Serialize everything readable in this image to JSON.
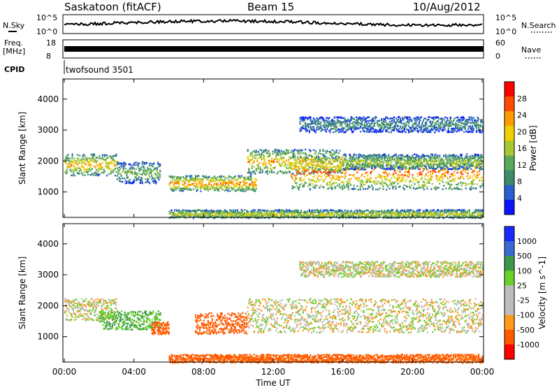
{
  "header": {
    "title": "Saskatoon (fitACF)",
    "beam": "Beam 15",
    "date": "10/Aug/2012"
  },
  "top_panels": {
    "nsky": {
      "label": "N.Sky",
      "tick_top": "10^5",
      "tick_bottom": "10^0"
    },
    "nsearch": {
      "label": "N.Search",
      "tick_top": "10^5",
      "tick_bottom": "10^0"
    },
    "freq": {
      "label_line1": "Freq.",
      "label_line2": "[MHz]",
      "tick_top": "18",
      "tick_bottom": "8"
    },
    "nave": {
      "label": "Nave",
      "tick_top": "60",
      "tick_bottom": "0"
    },
    "cpid": {
      "label": "CPID",
      "value": "twofsound 3501"
    }
  },
  "x_axis": {
    "label": "Time UT",
    "ticks": [
      "00:00",
      "04:00",
      "08:00",
      "12:00",
      "16:00",
      "20:00",
      "00:00"
    ]
  },
  "colors": {
    "power_scale": [
      "#0a14ff",
      "#2a5fd0",
      "#3f8a6a",
      "#5aa85a",
      "#a8c832",
      "#f0d000",
      "#ff9a00",
      "#ff4a00",
      "#ff0000"
    ],
    "velocity_scale": [
      "#ff0000",
      "#ff5a00",
      "#ff9a1a",
      "#bdbdbd",
      "#bdbdbd",
      "#6ad02a",
      "#3a9a4a",
      "#3a6ad0",
      "#1a2aff"
    ]
  },
  "chart_data": [
    {
      "type": "heatmap",
      "title": "Power",
      "xlabel": "Time UT",
      "ylabel": "Slant Range [km]",
      "xlim": [
        "00:00",
        "24:00"
      ],
      "ylim": [
        180,
        4650
      ],
      "y_ticks": [
        "1000",
        "2000",
        "3000",
        "4000"
      ],
      "colorbar": {
        "label": "Power [dB]",
        "range": [
          0,
          32
        ],
        "ticks": [
          "4",
          "8",
          "12",
          "16",
          "20",
          "24",
          "28"
        ]
      },
      "echo_bands": [
        {
          "t_start": 0.0,
          "t_end": 3.0,
          "range_center_km": 1900,
          "thickness_km": 350,
          "power_db": 22
        },
        {
          "t_start": 3.0,
          "t_end": 5.5,
          "range_center_km": 1650,
          "thickness_km": 350,
          "power_db": 14
        },
        {
          "t_start": 6.0,
          "t_end": 11.0,
          "range_center_km": 1300,
          "thickness_km": 250,
          "power_db": 25
        },
        {
          "t_start": 10.5,
          "t_end": 16.0,
          "range_center_km": 2000,
          "thickness_km": 400,
          "power_db": 22
        },
        {
          "t_start": 13.0,
          "t_end": 24.0,
          "range_center_km": 1650,
          "thickness_km": 550,
          "power_db": 26
        },
        {
          "t_start": 16.0,
          "t_end": 24.0,
          "range_center_km": 2000,
          "thickness_km": 250,
          "power_db": 16
        },
        {
          "t_start": 13.5,
          "t_end": 24.0,
          "range_center_km": 3200,
          "thickness_km": 250,
          "power_db": 10
        },
        {
          "t_start": 6.0,
          "t_end": 24.0,
          "range_center_km": 300,
          "thickness_km": 150,
          "power_db": 18
        }
      ]
    },
    {
      "type": "heatmap",
      "title": "Velocity",
      "xlabel": "Time UT",
      "ylabel": "Slant Range [km]",
      "xlim": [
        "00:00",
        "24:00"
      ],
      "ylim": [
        180,
        4650
      ],
      "y_ticks": [
        "1000",
        "2000",
        "3000",
        "4000"
      ],
      "colorbar": {
        "label": "Velocity [m s^-1]",
        "range": [
          -1200,
          1200
        ],
        "ticks": [
          "1000",
          "500",
          "100",
          "25",
          "-25",
          "-100",
          "-500",
          "-1000"
        ]
      },
      "echo_bands": [
        {
          "t_start": 0.0,
          "t_end": 3.0,
          "range_center_km": 1900,
          "thickness_km": 350,
          "velocity": 0
        },
        {
          "t_start": 2.0,
          "t_end": 5.5,
          "range_center_km": 1550,
          "thickness_km": 300,
          "velocity": 100
        },
        {
          "t_start": 5.0,
          "t_end": 6.0,
          "range_center_km": 1300,
          "thickness_km": 200,
          "velocity": -200
        },
        {
          "t_start": 7.5,
          "t_end": 10.5,
          "range_center_km": 1450,
          "thickness_km": 350,
          "velocity": -300
        },
        {
          "t_start": 10.5,
          "t_end": 24.0,
          "range_center_km": 1700,
          "thickness_km": 550,
          "velocity": 0
        },
        {
          "t_start": 13.5,
          "t_end": 24.0,
          "range_center_km": 3200,
          "thickness_km": 250,
          "velocity": 0
        },
        {
          "t_start": 6.0,
          "t_end": 24.0,
          "range_center_km": 300,
          "thickness_km": 150,
          "velocity": -150
        }
      ]
    }
  ]
}
